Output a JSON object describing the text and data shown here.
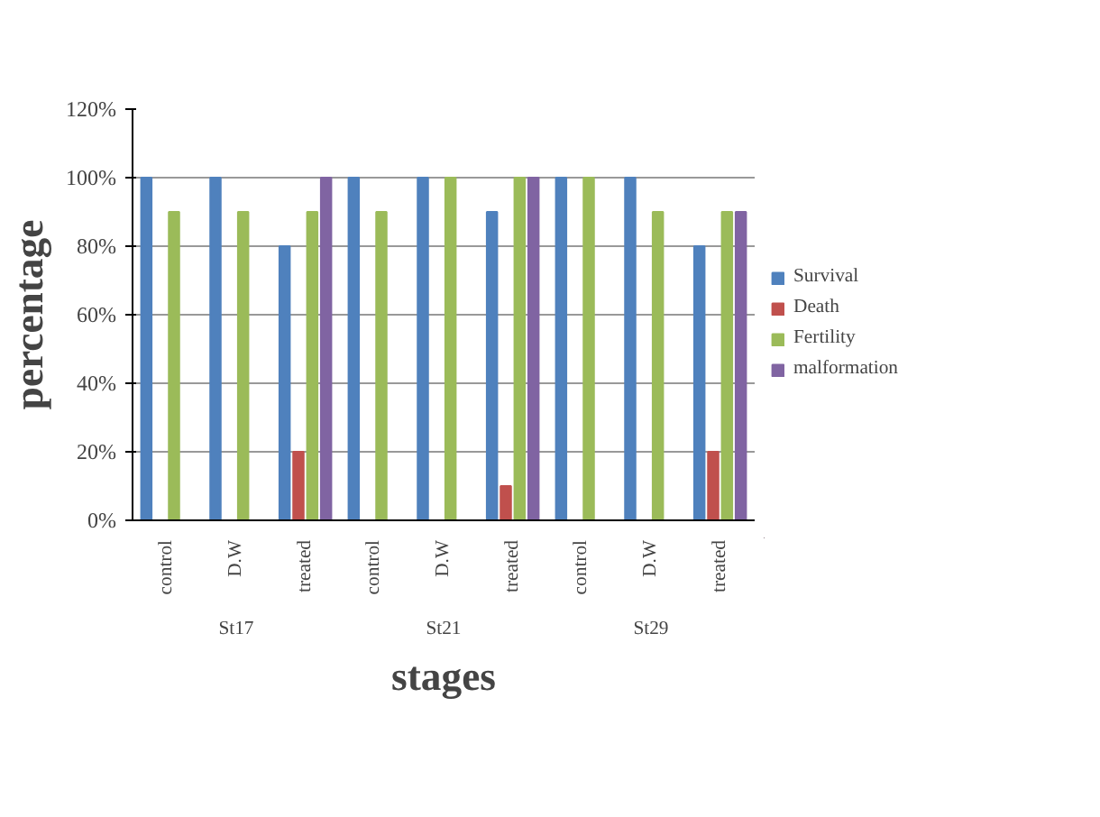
{
  "chart_data": {
    "type": "bar",
    "xlabel": "stages",
    "ylabel": "percentage",
    "categories": [
      "control",
      "D.W",
      "treated",
      "control",
      "D.W",
      "treated",
      "control",
      "D.W",
      "treated"
    ],
    "annotations": [
      "St17",
      "St21",
      "St29"
    ],
    "series": [
      {
        "name": "Survival",
        "color": "#4f81bd",
        "values": [
          100,
          100,
          80,
          100,
          100,
          90,
          100,
          100,
          80
        ]
      },
      {
        "name": "Death",
        "color": "#c0504d",
        "values": [
          0,
          0,
          20,
          0,
          0,
          10,
          0,
          0,
          20
        ]
      },
      {
        "name": "Fertility",
        "color": "#9bbb59",
        "values": [
          90,
          90,
          90,
          90,
          100,
          100,
          100,
          90,
          90
        ]
      },
      {
        "name": "malformation",
        "color": "#8064a2",
        "values": [
          0,
          0,
          100,
          0,
          0,
          100,
          0,
          0,
          90
        ]
      }
    ],
    "ylim": [
      0,
      120
    ],
    "yticks": [
      {
        "value": 0,
        "label": "0%"
      },
      {
        "value": 20,
        "label": "20%"
      },
      {
        "value": 40,
        "label": "40%"
      },
      {
        "value": 60,
        "label": "60%"
      },
      {
        "value": 80,
        "label": "80%"
      },
      {
        "value": 100,
        "label": "100%"
      },
      {
        "value": 120,
        "label": "120%"
      }
    ],
    "grid": "y",
    "legend": "right"
  }
}
